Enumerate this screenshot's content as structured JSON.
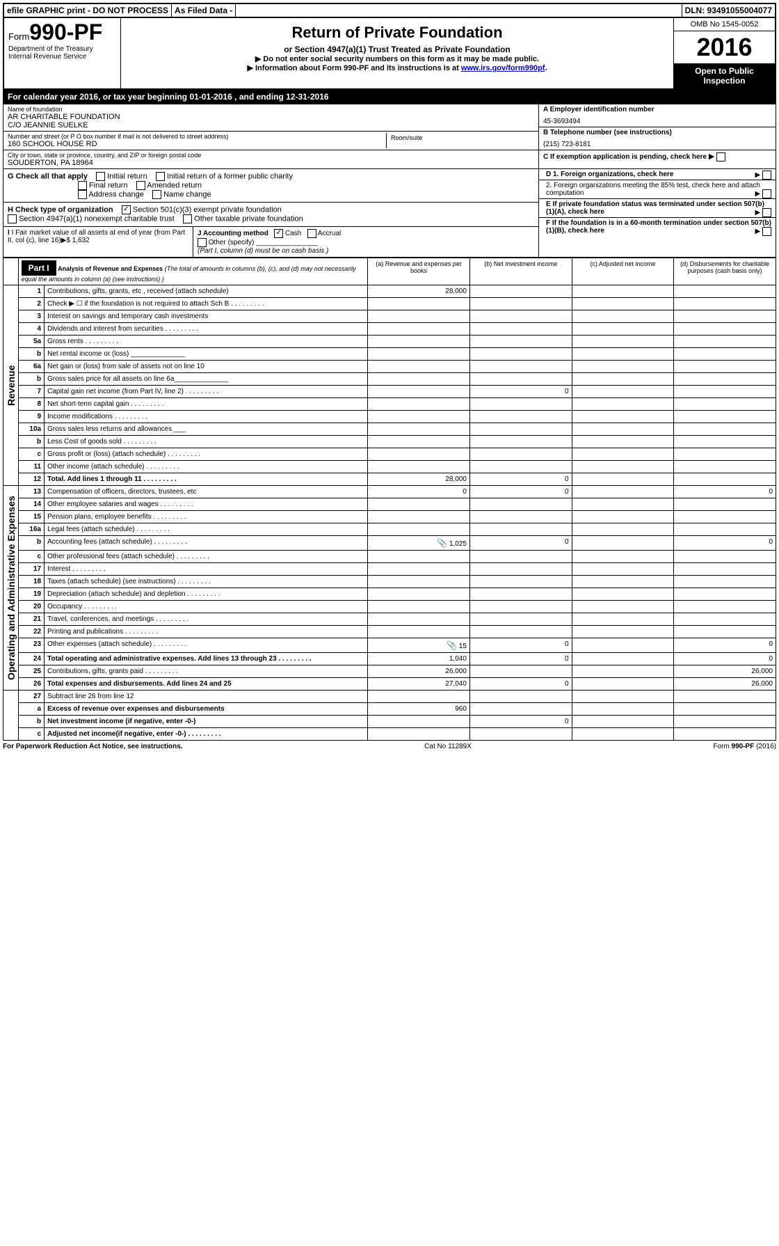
{
  "topbar": {
    "efile": "efile GRAPHIC print - DO NOT PROCESS",
    "asfiled": "As Filed Data -",
    "dln": "DLN: 93491055004077"
  },
  "header": {
    "form_prefix": "Form",
    "form_no": "990-PF",
    "dept": "Department of the Treasury",
    "irs": "Internal Revenue Service",
    "title": "Return of Private Foundation",
    "subtitle": "or Section 4947(a)(1) Trust Treated as Private Foundation",
    "line1": "▶ Do not enter social security numbers on this form as it may be made public.",
    "line2_pre": "▶ Information about Form 990-PF and its instructions is at ",
    "line2_link": "www.irs.gov/form990pf",
    "omb": "OMB No  1545-0052",
    "year": "2016",
    "open": "Open to Public Inspection"
  },
  "cal": "For calendar year 2016, or tax year beginning 01-01-2016            , and ending 12-31-2016",
  "info": {
    "name_label": "Name of foundation",
    "name1": "AR CHARITABLE FOUNDATION",
    "name2": "C/O JEANNIE SUELKE",
    "addr_label": "Number and street (or P O  box number if mail is not delivered to street address)",
    "addr": "160 SCHOOL HOUSE RD",
    "room_label": "Room/suite",
    "city_label": "City or town, state or province, country, and ZIP or foreign postal code",
    "city": "SOUDERTON, PA  18964",
    "a_label": "A Employer identification number",
    "a_val": "45-3693494",
    "b_label": "B Telephone number (see instructions)",
    "b_val": "(215) 723-8181",
    "c_label": "C If exemption application is pending, check here"
  },
  "g": {
    "label": "G Check all that apply",
    "opts": [
      "Initial return",
      "Initial return of a former public charity",
      "Final return",
      "Amended return",
      "Address change",
      "Name change"
    ]
  },
  "h": {
    "label": "H Check type of organization",
    "opt1": "Section 501(c)(3) exempt private foundation",
    "opt2": "Section 4947(a)(1) nonexempt charitable trust",
    "opt3": "Other taxable private foundation"
  },
  "i": {
    "label": "I Fair market value of all assets at end of year (from Part II, col  (c), line 16)▶$  1,632"
  },
  "j": {
    "label": "J Accounting method",
    "cash": "Cash",
    "accrual": "Accrual",
    "other": "Other (specify)",
    "note": "(Part I, column (d) must be on cash basis )"
  },
  "d": {
    "d1": "D 1. Foreign organizations, check here",
    "d2": "2. Foreign organizations meeting the 85% test, check here and attach computation",
    "e": "E  If private foundation status was terminated under section 507(b)(1)(A), check here",
    "f": "F  If the foundation is in a 60-month termination under section 507(b)(1)(B), check here"
  },
  "part1": {
    "label": "Part I",
    "title": "Analysis of Revenue and Expenses",
    "desc": " (The total of amounts in columns (b), (c), and (d) may not necessarily equal the amounts in column (a) (see instructions) )",
    "col_a": "(a)   Revenue and expenses per books",
    "col_b": "(b)  Net investment income",
    "col_c": "(c)  Adjusted net income",
    "col_d": "(d)  Disbursements for charitable purposes (cash basis only)"
  },
  "side": {
    "revenue": "Revenue",
    "expenses": "Operating and Administrative Expenses"
  },
  "rows": [
    {
      "n": "1",
      "d": "Contributions, gifts, grants, etc , received (attach schedule)",
      "a": "28,000"
    },
    {
      "n": "2",
      "d": "Check ▶ ☐ if the foundation is not required to attach Sch B",
      "dots": true
    },
    {
      "n": "3",
      "d": "Interest on savings and temporary cash investments"
    },
    {
      "n": "4",
      "d": "Dividends and interest from securities",
      "dots": true
    },
    {
      "n": "5a",
      "d": "Gross rents",
      "dots": true
    },
    {
      "n": "b",
      "d": "Net rental income or (loss)  ______________"
    },
    {
      "n": "6a",
      "d": "Net gain or (loss) from sale of assets not on line 10"
    },
    {
      "n": "b",
      "d": "Gross sales price for all assets on line 6a______________"
    },
    {
      "n": "7",
      "d": "Capital gain net income (from Part IV, line 2)",
      "dots": true,
      "b": "0"
    },
    {
      "n": "8",
      "d": "Net short-term capital gain",
      "dots": true
    },
    {
      "n": "9",
      "d": "Income modifications",
      "dots": true
    },
    {
      "n": "10a",
      "d": "Gross sales less returns and allowances ___"
    },
    {
      "n": "b",
      "d": "Less  Cost of goods sold",
      "dots": true
    },
    {
      "n": "c",
      "d": "Gross profit or (loss) (attach schedule)",
      "dots": true
    },
    {
      "n": "11",
      "d": "Other income (attach schedule)",
      "dots": true
    },
    {
      "n": "12",
      "d": "Total. Add lines 1 through 11",
      "dots": true,
      "bold": true,
      "a": "28,000",
      "b": "0"
    }
  ],
  "exp_rows": [
    {
      "n": "13",
      "d": "Compensation of officers, directors, trustees, etc",
      "a": "0",
      "b": "0",
      "dd": "0"
    },
    {
      "n": "14",
      "d": "Other employee salaries and wages",
      "dots": true
    },
    {
      "n": "15",
      "d": "Pension plans, employee benefits",
      "dots": true
    },
    {
      "n": "16a",
      "d": "Legal fees (attach schedule)",
      "dots": true
    },
    {
      "n": "b",
      "d": "Accounting fees (attach schedule)",
      "dots": true,
      "clip": true,
      "a": "1,025",
      "b": "0",
      "dd": "0"
    },
    {
      "n": "c",
      "d": "Other professional fees (attach schedule)",
      "dots": true
    },
    {
      "n": "17",
      "d": "Interest",
      "dots": true
    },
    {
      "n": "18",
      "d": "Taxes (attach schedule) (see instructions)",
      "dots": true
    },
    {
      "n": "19",
      "d": "Depreciation (attach schedule) and depletion",
      "dots": true
    },
    {
      "n": "20",
      "d": "Occupancy",
      "dots": true
    },
    {
      "n": "21",
      "d": "Travel, conferences, and meetings",
      "dots": true
    },
    {
      "n": "22",
      "d": "Printing and publications",
      "dots": true
    },
    {
      "n": "23",
      "d": "Other expenses (attach schedule)",
      "dots": true,
      "clip": true,
      "a": "15",
      "b": "0",
      "dd": "0"
    },
    {
      "n": "24",
      "d": "Total operating and administrative expenses. Add lines 13 through 23",
      "dots": true,
      "bold": true,
      "a": "1,040",
      "b": "0",
      "dd": "0"
    },
    {
      "n": "25",
      "d": "Contributions, gifts, grants paid",
      "dots": true,
      "a": "26,000",
      "dd": "26,000"
    },
    {
      "n": "26",
      "d": "Total expenses and disbursements. Add lines 24 and 25",
      "bold": true,
      "a": "27,040",
      "b": "0",
      "dd": "26,000"
    }
  ],
  "sum_rows": [
    {
      "n": "27",
      "d": "Subtract line 26 from line 12"
    },
    {
      "n": "a",
      "d": "Excess of revenue over expenses and disbursements",
      "bold": true,
      "a": "960"
    },
    {
      "n": "b",
      "d": "Net investment income (if negative, enter -0-)",
      "bold": true,
      "b": "0"
    },
    {
      "n": "c",
      "d": "Adjusted net income(if negative, enter -0-)",
      "dots": true,
      "bold": true
    }
  ],
  "footer": {
    "left": "For Paperwork Reduction Act Notice, see instructions.",
    "center": "Cat  No  11289X",
    "right": "Form 990-PF (2016)"
  }
}
